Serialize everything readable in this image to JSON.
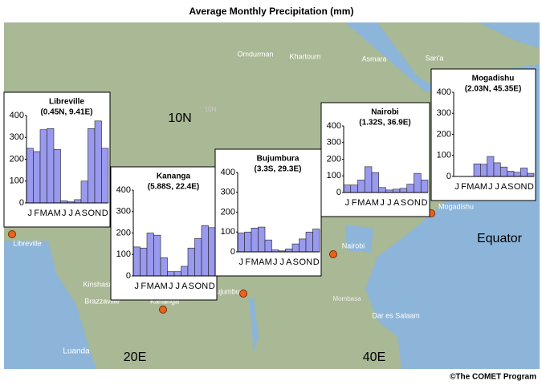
{
  "title": "Average Monthly Precipitation (mm)",
  "credit": "©The COMET Program",
  "map_labels": [
    "Omdurman",
    "Khartoum",
    "Asmara",
    "San'a",
    "10N",
    "10N",
    "Equator",
    "20E",
    "40E",
    "Libreville",
    "Kinshasa",
    "Brazzaville",
    "Luanda",
    "Bujumbura",
    "Nairobi",
    "Mombasa",
    "Dar es Salaam",
    "Mogadishu",
    "Kananga"
  ],
  "chart_data": [
    {
      "type": "bar",
      "title": "Libreville",
      "subtitle": "(0.45N, 9.41E)",
      "categories": [
        "J",
        "F",
        "M",
        "A",
        "M",
        "J",
        "J",
        "A",
        "S",
        "O",
        "N",
        "D"
      ],
      "values": [
        250,
        235,
        335,
        340,
        245,
        10,
        5,
        15,
        100,
        340,
        375,
        250
      ],
      "color": "#9999ee",
      "ylim": [
        0,
        400
      ],
      "yticks": [
        0,
        100,
        200,
        300,
        400
      ]
    },
    {
      "type": "bar",
      "title": "Kananga",
      "subtitle": "(5.88S, 22.4E)",
      "categories": [
        "J",
        "F",
        "M",
        "A",
        "M",
        "J",
        "J",
        "A",
        "S",
        "O",
        "N",
        "D"
      ],
      "values": [
        135,
        130,
        200,
        190,
        85,
        20,
        20,
        45,
        130,
        175,
        235,
        225
      ],
      "color": "#9999ee",
      "ylim": [
        0,
        400
      ],
      "yticks": [
        0,
        100,
        200,
        300,
        400
      ]
    },
    {
      "type": "bar",
      "title": "Bujumbura",
      "subtitle": "(3.3S, 29.3E)",
      "categories": [
        "J",
        "F",
        "M",
        "A",
        "M",
        "J",
        "J",
        "A",
        "S",
        "O",
        "N",
        "D"
      ],
      "values": [
        95,
        100,
        120,
        125,
        60,
        10,
        5,
        15,
        40,
        65,
        100,
        115
      ],
      "color": "#9999ee",
      "ylim": [
        0,
        400
      ],
      "yticks": [
        0,
        100,
        200,
        300,
        400
      ]
    },
    {
      "type": "bar",
      "title": "Nairobi",
      "subtitle": "(1.32S, 36.9E)",
      "categories": [
        "J",
        "F",
        "M",
        "A",
        "M",
        "J",
        "J",
        "A",
        "S",
        "O",
        "N",
        "D"
      ],
      "values": [
        45,
        45,
        75,
        155,
        120,
        30,
        15,
        20,
        25,
        50,
        115,
        75
      ],
      "color": "#9999ee",
      "ylim": [
        0,
        400
      ],
      "yticks": [
        0,
        100,
        200,
        300,
        400
      ]
    },
    {
      "type": "bar",
      "title": "Mogadishu",
      "subtitle": "(2.03N, 45.35E)",
      "categories": [
        "J",
        "F",
        "M",
        "A",
        "M",
        "J",
        "J",
        "A",
        "S",
        "O",
        "N",
        "D"
      ],
      "values": [
        0,
        0,
        0,
        60,
        58,
        95,
        65,
        45,
        25,
        20,
        40,
        15
      ],
      "color": "#9999ee",
      "ylim": [
        0,
        400
      ],
      "yticks": [
        0,
        100,
        200,
        300,
        400
      ]
    }
  ]
}
